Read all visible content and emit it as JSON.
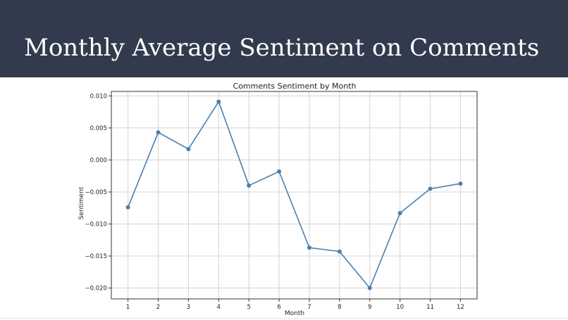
{
  "slide": {
    "title": "Monthly Average Sentiment on Comments",
    "header_color": "#323a4e"
  },
  "chart_data": {
    "type": "line",
    "title": "Comments Sentiment by Month",
    "xlabel": "Month",
    "ylabel": "Sentiment",
    "x": [
      1,
      2,
      3,
      4,
      5,
      6,
      7,
      8,
      9,
      10,
      11,
      12
    ],
    "x_ticks": [
      "1",
      "2",
      "3",
      "4",
      "5",
      "6",
      "7",
      "8",
      "9",
      "10",
      "11",
      "12"
    ],
    "y_ticks": [
      {
        "value": 0.01,
        "label": "0.010"
      },
      {
        "value": 0.005,
        "label": "0.005"
      },
      {
        "value": 0.0,
        "label": "0.000"
      },
      {
        "value": -0.005,
        "label": "−0.005"
      },
      {
        "value": -0.01,
        "label": "−0.010"
      },
      {
        "value": -0.015,
        "label": "−0.015"
      },
      {
        "value": -0.02,
        "label": "−0.020"
      }
    ],
    "xlim": [
      0.45,
      12.55
    ],
    "ylim": [
      -0.0217,
      0.0107
    ],
    "grid": true,
    "series": [
      {
        "color": "#4a7fb0",
        "marker": "circle",
        "values": [
          -0.0074,
          0.0043,
          0.0017,
          0.0091,
          -0.004,
          -0.0018,
          -0.0137,
          -0.0143,
          -0.02,
          -0.0083,
          -0.0045,
          -0.0037
        ]
      }
    ]
  }
}
